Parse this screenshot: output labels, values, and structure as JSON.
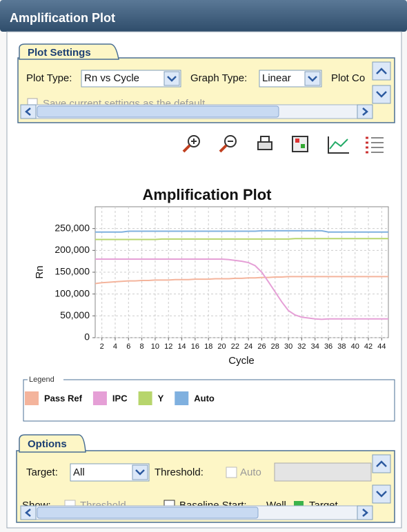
{
  "header": {
    "title": "Amplification Plot"
  },
  "plot_settings": {
    "tab": "Plot Settings",
    "plot_type_label": "Plot Type:",
    "plot_type_value": "Rn vs Cycle",
    "graph_type_label": "Graph Type:",
    "graph_type_value": "Linear",
    "plot_color_label": "Plot Co",
    "save_default": "Save current settings as the default"
  },
  "chart_data": {
    "type": "line",
    "title": "Amplification Plot",
    "x_label": "Cycle",
    "y_label": "Rn",
    "x": [
      1,
      2,
      3,
      4,
      5,
      6,
      7,
      8,
      9,
      10,
      11,
      12,
      13,
      14,
      15,
      16,
      17,
      18,
      19,
      20,
      21,
      22,
      23,
      24,
      25,
      26,
      27,
      28,
      29,
      30,
      31,
      32,
      33,
      34,
      35,
      36,
      37,
      38,
      39,
      40,
      41,
      42,
      43,
      44,
      45
    ],
    "xlim": [
      1,
      45
    ],
    "xticks": [
      2,
      4,
      6,
      8,
      10,
      12,
      14,
      16,
      18,
      20,
      22,
      24,
      26,
      28,
      30,
      32,
      34,
      36,
      38,
      40,
      42,
      44
    ],
    "ylim": [
      0,
      300000
    ],
    "yticks": [
      {
        "value": 0,
        "label": "0"
      },
      {
        "value": 50000,
        "label": "50,000"
      },
      {
        "value": 100000,
        "label": "100,000"
      },
      {
        "value": 150000,
        "label": "150,000"
      },
      {
        "value": 200000,
        "label": "200,000"
      },
      {
        "value": 250000,
        "label": "250,000"
      }
    ],
    "grid": true,
    "legend_title": "Legend",
    "series": [
      {
        "name": "Pass Ref",
        "color": "#f4b49c",
        "values": [
          124000,
          126000,
          127000,
          128000,
          129000,
          130000,
          130000,
          131000,
          131000,
          132000,
          132000,
          132000,
          133000,
          133000,
          133000,
          134000,
          134000,
          134000,
          135000,
          135000,
          135000,
          136000,
          136000,
          137000,
          137000,
          138000,
          138000,
          139000,
          139000,
          140000,
          140000,
          140000,
          140000,
          140000,
          140000,
          140000,
          140000,
          140000,
          140000,
          140000,
          140000,
          140000,
          140000,
          140000,
          140000
        ]
      },
      {
        "name": "IPC",
        "color": "#e59fd6",
        "values": [
          180000,
          180000,
          180000,
          180000,
          180000,
          180000,
          180000,
          180000,
          180000,
          180000,
          180000,
          180000,
          180000,
          180000,
          180000,
          180000,
          180000,
          180000,
          180000,
          180000,
          179000,
          177000,
          175000,
          172000,
          165000,
          150000,
          128000,
          105000,
          82000,
          62000,
          52000,
          47000,
          45000,
          43000,
          42000,
          43000,
          43000,
          43000,
          43000,
          43000,
          43000,
          43000,
          43000,
          43000,
          43000
        ]
      },
      {
        "name": "Y",
        "color": "#b7d56c",
        "values": [
          225000,
          225000,
          225000,
          225000,
          225000,
          225000,
          225000,
          225000,
          225000,
          225000,
          226000,
          226000,
          226000,
          226000,
          226000,
          226000,
          226000,
          226000,
          226000,
          226000,
          226000,
          226000,
          226000,
          226000,
          226000,
          226000,
          226000,
          226000,
          226000,
          226000,
          227000,
          227000,
          227000,
          227000,
          227000,
          227000,
          227000,
          227000,
          227000,
          227000,
          227000,
          227000,
          227000,
          227000,
          227000
        ]
      },
      {
        "name": "Auto",
        "color": "#7fb0df",
        "values": [
          242000,
          242000,
          242000,
          242000,
          242000,
          244000,
          244000,
          244000,
          244000,
          244000,
          244000,
          244000,
          244000,
          244000,
          244000,
          244000,
          244000,
          244000,
          244000,
          244000,
          244000,
          244000,
          244000,
          244000,
          244000,
          245000,
          245000,
          245000,
          245000,
          245000,
          245000,
          245000,
          245000,
          245000,
          245000,
          242000,
          242000,
          242000,
          242000,
          242000,
          242000,
          242000,
          242000,
          242000,
          242000
        ]
      }
    ]
  },
  "options": {
    "tab": "Options",
    "target_label": "Target:",
    "target_value": "All",
    "threshold_label": "Threshold:",
    "auto_label": "Auto",
    "show_label": "Show:",
    "show_threshold": "Threshold",
    "baseline_start": "Baseline Start:",
    "well": "Well",
    "target": "Target"
  }
}
